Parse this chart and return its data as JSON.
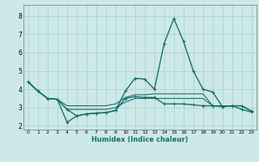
{
  "xlabel": "Humidex (Indice chaleur)",
  "bg_color": "#cce8e8",
  "grid_color": "#aacece",
  "line_color": "#1a6e6a",
  "xlim": [
    -0.5,
    23.5
  ],
  "ylim": [
    1.8,
    8.6
  ],
  "xticks": [
    0,
    1,
    2,
    3,
    4,
    5,
    6,
    7,
    8,
    9,
    10,
    11,
    12,
    13,
    14,
    15,
    16,
    17,
    18,
    19,
    20,
    21,
    22,
    23
  ],
  "yticks": [
    2,
    3,
    4,
    5,
    6,
    7,
    8
  ],
  "series": [
    {
      "x": [
        0,
        1,
        2,
        3,
        4,
        5,
        6,
        7,
        8,
        9,
        10,
        11,
        12,
        13,
        14,
        15,
        16,
        17,
        18,
        19,
        20,
        21,
        22,
        23
      ],
      "y": [
        4.4,
        3.9,
        3.5,
        3.45,
        2.9,
        2.55,
        2.65,
        2.7,
        2.72,
        2.85,
        3.5,
        3.6,
        3.55,
        3.55,
        3.2,
        3.2,
        3.2,
        3.15,
        3.1,
        3.1,
        3.05,
        3.1,
        3.1,
        2.8
      ],
      "marker": true,
      "lw": 1.0
    },
    {
      "x": [
        0,
        1,
        2,
        3,
        4,
        5,
        6,
        7,
        8,
        9,
        10,
        11,
        12,
        13,
        14,
        15,
        16,
        17,
        18,
        19,
        20,
        21,
        22,
        23
      ],
      "y": [
        4.4,
        3.9,
        3.5,
        3.45,
        2.2,
        2.55,
        2.65,
        2.7,
        2.72,
        2.85,
        3.9,
        4.6,
        4.55,
        4.0,
        6.5,
        7.85,
        6.6,
        5.0,
        4.0,
        3.85,
        3.05,
        3.1,
        2.9,
        2.75
      ],
      "marker": true,
      "lw": 1.0
    },
    {
      "x": [
        0,
        1,
        2,
        3,
        4,
        5,
        6,
        7,
        8,
        9,
        10,
        11,
        12,
        13,
        14,
        15,
        16,
        17,
        18,
        19,
        20,
        21,
        22,
        23
      ],
      "y": [
        4.4,
        3.9,
        3.5,
        3.45,
        3.1,
        3.1,
        3.1,
        3.1,
        3.1,
        3.2,
        3.55,
        3.7,
        3.7,
        3.75,
        3.75,
        3.75,
        3.75,
        3.75,
        3.75,
        3.1,
        3.1,
        3.1,
        3.1,
        2.8
      ],
      "marker": false,
      "lw": 0.8
    },
    {
      "x": [
        0,
        1,
        2,
        3,
        4,
        5,
        6,
        7,
        8,
        9,
        10,
        11,
        12,
        13,
        14,
        15,
        16,
        17,
        18,
        19,
        20,
        21,
        22,
        23
      ],
      "y": [
        4.4,
        3.9,
        3.5,
        3.45,
        2.9,
        2.9,
        2.9,
        2.9,
        2.9,
        3.0,
        3.3,
        3.5,
        3.5,
        3.5,
        3.5,
        3.5,
        3.5,
        3.5,
        3.5,
        3.1,
        3.1,
        3.1,
        3.1,
        2.8
      ],
      "marker": false,
      "lw": 0.8
    }
  ]
}
